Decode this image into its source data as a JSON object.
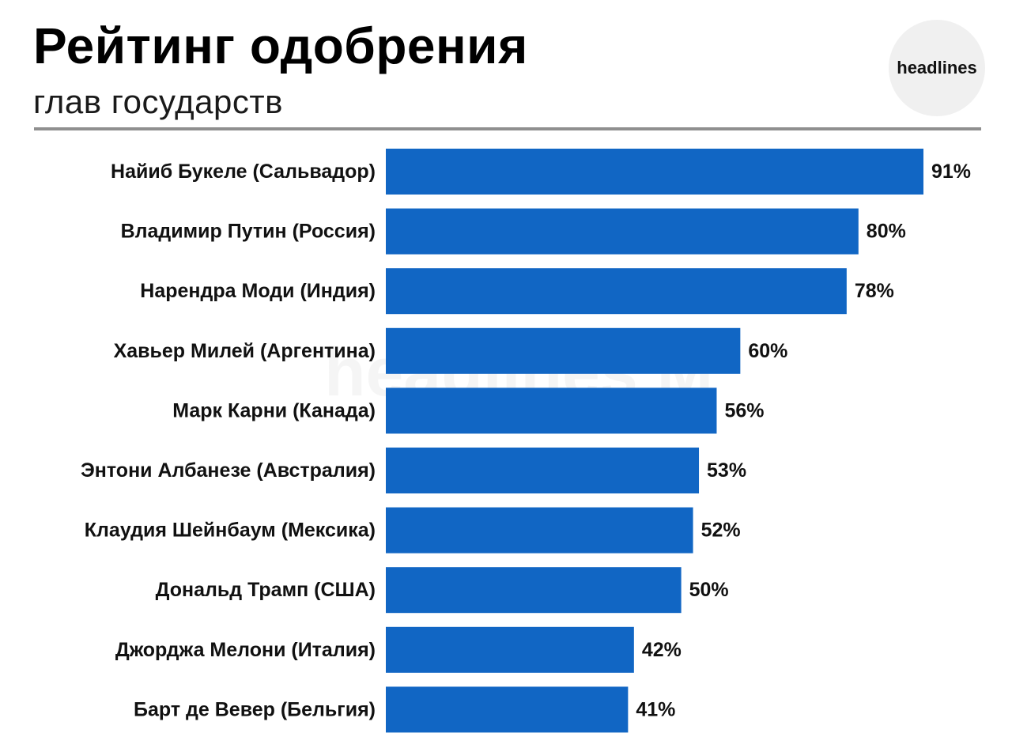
{
  "header": {
    "title": "Рейтинг одобрения",
    "subtitle": "глав государств",
    "logo_text": "headlines",
    "watermark_text": "headlines M"
  },
  "colors": {
    "bar": "#1166c4",
    "divider": "#8f8f8f",
    "logo_bg": "#f0f0f0"
  },
  "chart_data": {
    "type": "bar",
    "orientation": "horizontal",
    "title": "Рейтинг одобрения",
    "subtitle": "глав государств",
    "xlabel": "",
    "ylabel": "",
    "xlim": [
      0,
      100
    ],
    "value_suffix": "%",
    "categories": [
      "Найиб Букеле (Сальвадор)",
      "Владимир Путин (Россия)",
      "Нарендра Моди (Индия)",
      "Хавьер Милей (Аргентина)",
      "Марк Карни (Канада)",
      "Энтони Албанезе (Австралия)",
      "Клаудия Шейнбаум (Мексика)",
      "Дональд Трамп (США)",
      "Джорджа Мелони (Италия)",
      "Барт де Вевер (Бельгия)"
    ],
    "values": [
      91,
      80,
      78,
      60,
      56,
      53,
      52,
      50,
      42,
      41
    ],
    "value_labels": [
      "91%",
      "80%",
      "78%",
      "60%",
      "56%",
      "53%",
      "52%",
      "50%",
      "42%",
      "41%"
    ]
  }
}
